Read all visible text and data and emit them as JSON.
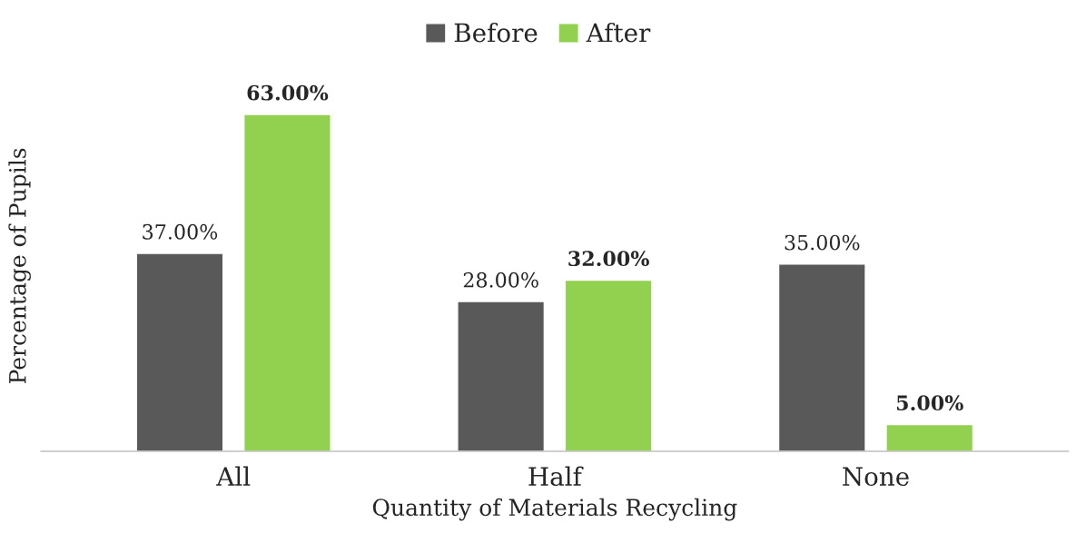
{
  "chart_data": {
    "type": "bar",
    "xlabel": "Quantity of Materials Recycling",
    "ylabel": "Percentage of Pupils",
    "categories": [
      "All",
      "Half",
      "None"
    ],
    "series": [
      {
        "name": "Before",
        "color": "#595959",
        "values": [
          37,
          28,
          35
        ],
        "value_labels": [
          "37.00%",
          "28.00%",
          "35.00%"
        ]
      },
      {
        "name": "After",
        "color": "#92d050",
        "values": [
          63,
          32,
          5
        ],
        "value_labels": [
          "63.00%",
          "32.00%",
          "5.00%"
        ]
      }
    ],
    "legend": "top",
    "grid": false
  }
}
